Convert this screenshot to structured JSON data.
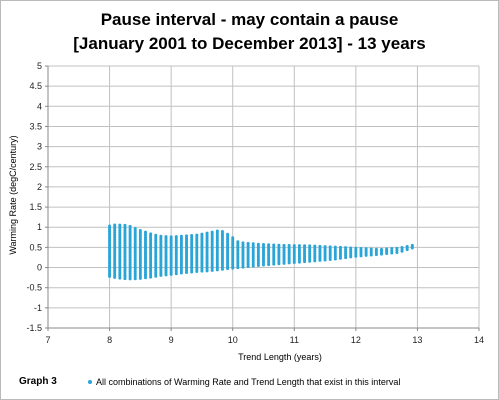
{
  "chart_data": {
    "type": "scatter",
    "title_line1": "Pause interval  -  may contain a pause",
    "title_line2": "[January 2001 to December 2013] - 13 years",
    "xlabel": "Trend Length (years)",
    "ylabel": "Warming Rate (degC/century)",
    "xlim": [
      7,
      14
    ],
    "ylim": [
      -1.5,
      5
    ],
    "x_ticks": [
      7,
      8,
      9,
      10,
      11,
      12,
      13,
      14
    ],
    "y_ticks": [
      -1.5,
      -1,
      -0.5,
      0,
      0.5,
      1,
      1.5,
      2,
      2.5,
      3,
      3.5,
      4,
      4.5,
      5
    ],
    "x_tick_labels": [
      "7",
      "8",
      "9",
      "10",
      "11",
      "12",
      "13",
      "14"
    ],
    "y_tick_labels": [
      "-1.5",
      "-1",
      "-0.5",
      "0",
      "0.5",
      "1",
      "1.5",
      "2",
      "2.5",
      "3",
      "3.5",
      "4",
      "4.5",
      "5"
    ],
    "grid": true,
    "marker_color": "#2aa5d8",
    "grid_color": "#c0c0c0",
    "series": [
      {
        "name": "All combinations of Warming Rate and Trend Length that exist in this interval",
        "envelope_points": [
          [
            8.0,
            -0.22,
            1.03
          ],
          [
            8.1,
            -0.25,
            1.06
          ],
          [
            8.2,
            -0.27,
            1.05
          ],
          [
            8.3,
            -0.28,
            1.04
          ],
          [
            8.4,
            -0.28,
            0.98
          ],
          [
            8.5,
            -0.27,
            0.92
          ],
          [
            8.6,
            -0.25,
            0.87
          ],
          [
            8.7,
            -0.23,
            0.82
          ],
          [
            8.8,
            -0.2,
            0.78
          ],
          [
            9.0,
            -0.17,
            0.76
          ],
          [
            9.2,
            -0.13,
            0.78
          ],
          [
            9.4,
            -0.1,
            0.8
          ],
          [
            9.6,
            -0.08,
            0.86
          ],
          [
            9.8,
            -0.05,
            0.92
          ],
          [
            9.95,
            -0.02,
            0.8
          ],
          [
            10.1,
            0.0,
            0.62
          ],
          [
            10.4,
            0.05,
            0.58
          ],
          [
            10.8,
            0.1,
            0.55
          ],
          [
            11.2,
            0.15,
            0.54
          ],
          [
            11.6,
            0.2,
            0.51
          ],
          [
            12.0,
            0.28,
            0.48
          ],
          [
            12.4,
            0.33,
            0.45
          ],
          [
            12.7,
            0.38,
            0.48
          ],
          [
            12.95,
            0.5,
            0.56
          ]
        ]
      }
    ]
  },
  "footer": {
    "graph_label": "Graph 3",
    "legend_text": "All combinations of Warming Rate and Trend Length that exist in this interval"
  }
}
